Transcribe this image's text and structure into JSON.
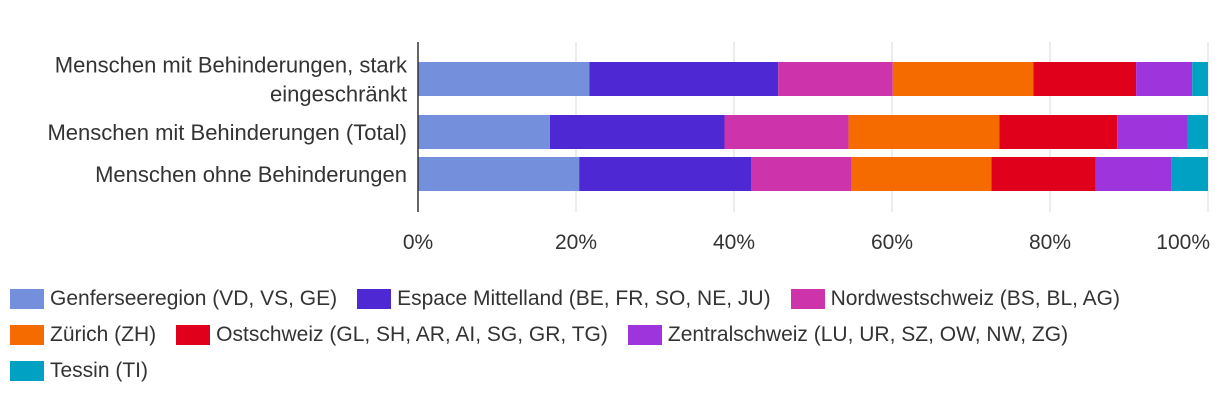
{
  "chart_data": {
    "type": "bar",
    "orientation": "horizontal",
    "stacked": true,
    "normalized": true,
    "categories": [
      [
        "Menschen mit Behinderungen, stark",
        "eingeschränkt"
      ],
      [
        "Menschen mit Behinderungen (Total)"
      ],
      [
        "Menschen ohne Behinderungen"
      ]
    ],
    "series": [
      {
        "name": "Genferseeregion (VD, VS, GE)",
        "color": "#748fdc",
        "values": [
          21.7,
          16.7,
          20.4
        ]
      },
      {
        "name": "Espace Mittelland (BE, FR, SO, NE, JU)",
        "color": "#4e28d2",
        "values": [
          23.9,
          22.1,
          21.8
        ]
      },
      {
        "name": "Nordwestschweiz (BS, BL, AG)",
        "color": "#cd34ac",
        "values": [
          14.5,
          15.7,
          12.7
        ]
      },
      {
        "name": "Zürich (ZH)",
        "color": "#f56b00",
        "values": [
          17.8,
          19.1,
          17.7
        ]
      },
      {
        "name": "Ostschweiz (GL, SH, AR, AI, SG, GR, TG)",
        "color": "#e0001b",
        "values": [
          13.0,
          14.9,
          13.2
        ]
      },
      {
        "name": "Zentralschweiz (LU, UR, SZ, OW, NW, ZG)",
        "color": "#9d34dc",
        "values": [
          7.1,
          8.9,
          9.6
        ]
      },
      {
        "name": "Tessin (TI)",
        "color": "#00a1c3",
        "values": [
          2.0,
          2.6,
          4.6
        ]
      }
    ],
    "x_ticks": [
      "0%",
      "20%",
      "40%",
      "60%",
      "80%",
      "100%"
    ],
    "xlim": [
      0,
      100
    ],
    "grid": true,
    "legend_position": "bottom",
    "title": "",
    "xlabel": "",
    "ylabel": ""
  }
}
